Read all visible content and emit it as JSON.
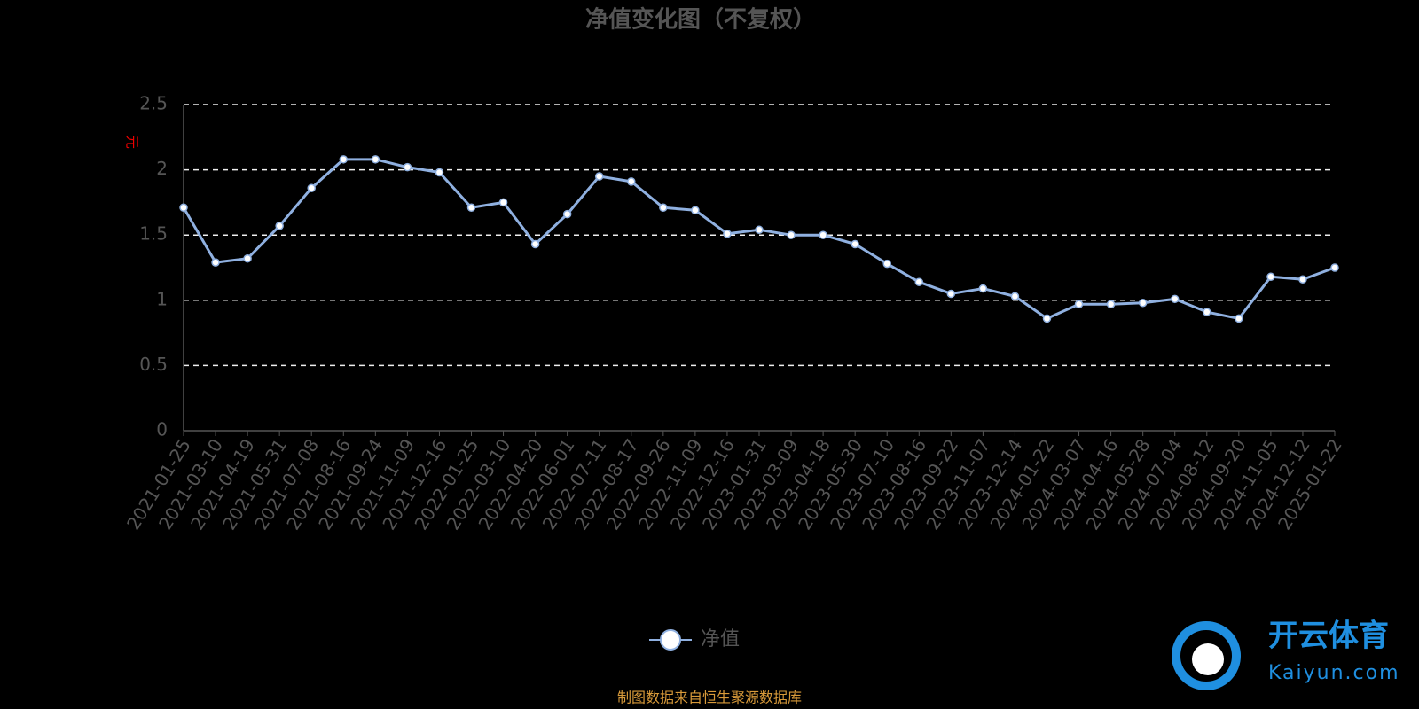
{
  "chart_data": {
    "type": "line",
    "title": "净值变化图（不复权）",
    "y_label": "元",
    "x": [
      "2021-01-25",
      "2021-03-10",
      "2021-04-19",
      "2021-05-31",
      "2021-07-08",
      "2021-08-16",
      "2021-09-24",
      "2021-11-09",
      "2021-12-16",
      "2022-01-25",
      "2022-03-10",
      "2022-04-20",
      "2022-06-01",
      "2022-07-11",
      "2022-08-17",
      "2022-09-26",
      "2022-11-09",
      "2022-12-16",
      "2023-01-31",
      "2023-03-09",
      "2023-04-18",
      "2023-05-30",
      "2023-07-10",
      "2023-08-16",
      "2023-09-22",
      "2023-11-07",
      "2023-12-14",
      "2024-01-22",
      "2024-03-07",
      "2024-04-16",
      "2024-05-28",
      "2024-07-04",
      "2024-08-12",
      "2024-09-20",
      "2024-11-05",
      "2024-12-12",
      "2025-01-22"
    ],
    "series": [
      {
        "name": "净值",
        "color": "#8fb0e0",
        "values": [
          1.71,
          1.29,
          1.32,
          1.57,
          1.86,
          2.08,
          2.08,
          2.02,
          1.98,
          1.71,
          1.75,
          1.43,
          1.66,
          1.95,
          1.91,
          1.71,
          1.69,
          1.51,
          1.54,
          1.5,
          1.5,
          1.43,
          1.28,
          1.14,
          1.05,
          1.09,
          1.03,
          0.86,
          0.97,
          0.97,
          0.98,
          1.01,
          0.91,
          0.86,
          1.18,
          1.16,
          1.25
        ]
      }
    ],
    "ylim": [
      0,
      2.5
    ],
    "yticks": [
      0,
      0.5,
      1,
      1.5,
      2,
      2.5
    ],
    "grid": true,
    "source": "制图数据来自恒生聚源数据库",
    "watermark": {
      "name": "开云体育",
      "site": "Kaiyun.com"
    }
  }
}
